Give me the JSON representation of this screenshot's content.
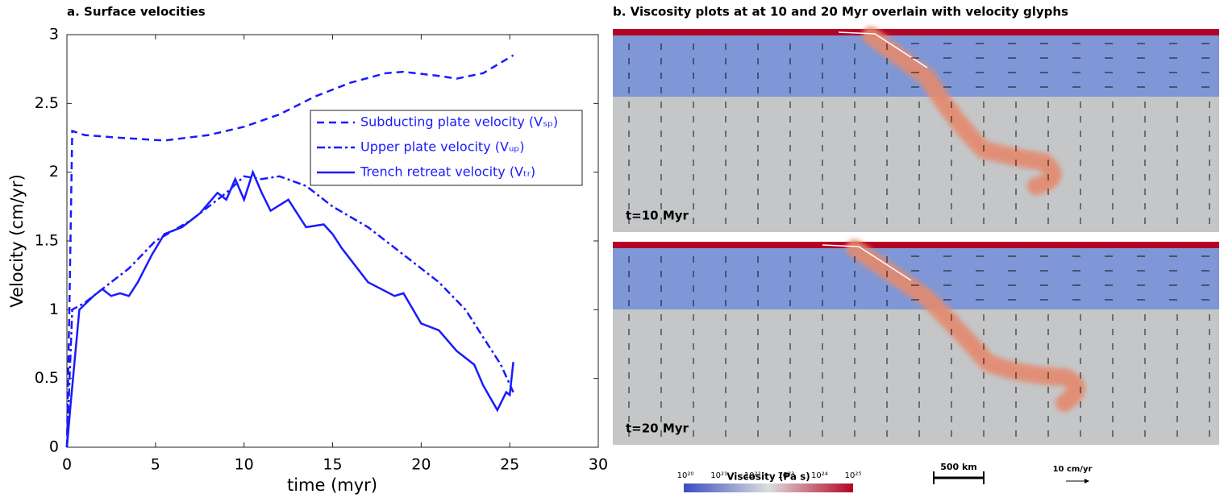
{
  "chart_data": {
    "type": "line",
    "title": "a. Surface velocities",
    "x_label": "time (myr)",
    "y_label": "Velocity (cm/yr)",
    "xlim": [
      0,
      30
    ],
    "xticks": [
      0,
      5,
      10,
      15,
      20,
      25,
      30
    ],
    "ylim": [
      0,
      3
    ],
    "yticks": [
      0,
      0.5,
      1,
      1.5,
      2,
      2.5,
      3
    ],
    "legend": "upper right",
    "series": [
      {
        "name": "Subducting plate velocity (Vₛₚ)",
        "color": "#1a1aff",
        "dash": "dashed",
        "x": [
          0,
          0.15,
          0.3,
          1,
          3,
          5.5,
          8,
          10,
          12,
          14,
          16,
          18,
          19,
          21,
          22,
          23.5,
          25.2
        ],
        "values": [
          0,
          1.1,
          2.3,
          2.27,
          2.25,
          2.23,
          2.27,
          2.33,
          2.42,
          2.55,
          2.65,
          2.72,
          2.73,
          2.7,
          2.68,
          2.72,
          2.85
        ]
      },
      {
        "name": "Upper plate velocity (Vᵤₚ)",
        "color": "#1a1aff",
        "dash": "dashdot",
        "x": [
          0,
          0.3,
          1,
          2,
          3.5,
          5,
          7,
          9,
          10,
          11,
          12,
          13.5,
          15,
          17,
          19,
          21,
          22.5,
          23.5,
          24.5,
          25.2
        ],
        "values": [
          0,
          1.0,
          1.05,
          1.15,
          1.3,
          1.5,
          1.65,
          1.85,
          1.97,
          1.95,
          1.97,
          1.9,
          1.75,
          1.6,
          1.4,
          1.2,
          1.0,
          0.8,
          0.6,
          0.4
        ]
      },
      {
        "name": "Trench retreat velocity (Vₜᵣ)",
        "color": "#1a1aff",
        "dash": "solid",
        "x": [
          0,
          0.2,
          0.7,
          1.5,
          2,
          2.5,
          3,
          3.5,
          4,
          4.8,
          5.5,
          6.5,
          7.5,
          8.5,
          9,
          9.5,
          10,
          10.5,
          11,
          11.5,
          12.5,
          13.5,
          14.5,
          15,
          15.5,
          17,
          18.5,
          19,
          20,
          21,
          22,
          23,
          23.5,
          24.3,
          24.8,
          25,
          25.2
        ],
        "values": [
          0,
          0.3,
          1.0,
          1.1,
          1.15,
          1.1,
          1.12,
          1.1,
          1.2,
          1.4,
          1.55,
          1.6,
          1.7,
          1.85,
          1.8,
          1.95,
          1.8,
          2.0,
          1.85,
          1.72,
          1.8,
          1.6,
          1.62,
          1.55,
          1.45,
          1.2,
          1.1,
          1.12,
          0.9,
          0.85,
          0.7,
          0.6,
          0.45,
          0.27,
          0.4,
          0.38,
          0.62
        ]
      }
    ]
  },
  "panel_b": {
    "title": "b. Viscosity plots at at 10 and 20 Myr overlain with velocity glyphs",
    "snapshot_labels": [
      "t=10 Myr",
      "t=20 Myr"
    ],
    "colorbar_title": "Viscosity (Pa s)",
    "colorbar_labels": [
      "10²⁰",
      "10²¹",
      "10²²",
      "10²³",
      "10²⁴",
      "10²⁵"
    ],
    "scale_bar": "500 km",
    "velocity_scale": "10 cm/yr"
  }
}
